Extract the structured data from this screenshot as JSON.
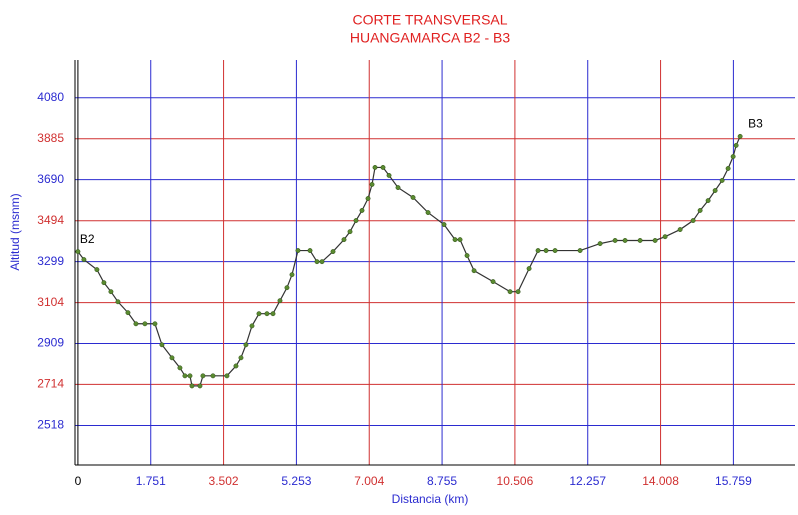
{
  "chart_data": {
    "type": "line",
    "title": "CORTE TRANSVERSAL",
    "subtitle": "HUANGAMARCA B2 - B3",
    "x_label": "Distancia (km)",
    "y_label": "Altitud (msnm)",
    "annotations": [
      "B2",
      "B3"
    ],
    "xlim": [
      -0.07,
      17.24
    ],
    "ylim": [
      2330,
      4260
    ],
    "xticks": [
      0,
      1.751,
      3.502,
      5.253,
      7.004,
      8.755,
      10.506,
      12.257,
      14.008,
      15.759
    ],
    "yticks": [
      2518,
      2714,
      2909,
      3104,
      3299,
      3494,
      3690,
      3885,
      4080
    ],
    "xtick_colors": [
      "#000000",
      "#2b2bd0",
      "#d03030",
      "#2b2bd0",
      "#d03030",
      "#2b2bd0",
      "#d03030",
      "#2b2bd0",
      "#d03030",
      "#2b2bd0"
    ],
    "ytick_colors": [
      "#2b2bd0",
      "#d03030",
      "#2b2bd0",
      "#d03030",
      "#2b2bd0",
      "#d03030",
      "#2b2bd0",
      "#d03030",
      "#2b2bd0"
    ],
    "grid": true,
    "series": [
      {
        "color": "#333333",
        "marker_color": "#5a8a30",
        "x": [
          0,
          0.144,
          0.457,
          0.625,
          0.794,
          0.962,
          1.203,
          1.395,
          1.611,
          1.852,
          2.02,
          2.261,
          2.453,
          2.573,
          2.694,
          2.742,
          2.934,
          3.006,
          3.247,
          3.583,
          3.8,
          3.92,
          4.04,
          4.185,
          4.353,
          4.545,
          4.69,
          4.858,
          5.026,
          5.147,
          5.291,
          5.58,
          5.748,
          5.868,
          6.133,
          6.397,
          6.542,
          6.686,
          6.83,
          6.975,
          7.071,
          7.143,
          7.335,
          7.48,
          7.696,
          8.057,
          8.418,
          8.802,
          9.067,
          9.187,
          9.356,
          9.524,
          9.981,
          10.39,
          10.582,
          10.847,
          11.063,
          11.255,
          11.472,
          12.073,
          12.554,
          12.915,
          13.155,
          13.516,
          13.877,
          14.117,
          14.478,
          14.791,
          14.959,
          15.151,
          15.32,
          15.488,
          15.632,
          15.753,
          15.825,
          15.921
        ],
        "values": [
          3347,
          3309,
          3261,
          3199,
          3156,
          3108,
          3056,
          3003,
          3003,
          3003,
          2903,
          2841,
          2793,
          2755,
          2755,
          2707,
          2707,
          2755,
          2755,
          2755,
          2802,
          2841,
          2903,
          2993,
          3051,
          3051,
          3051,
          3113,
          3175,
          3237,
          3352,
          3352,
          3299,
          3299,
          3347,
          3404,
          3442,
          3495,
          3543,
          3600,
          3667,
          3748,
          3748,
          3710,
          3652,
          3605,
          3533,
          3476,
          3404,
          3404,
          3328,
          3256,
          3204,
          3156,
          3156,
          3266,
          3352,
          3352,
          3352,
          3352,
          3385,
          3400,
          3400,
          3400,
          3400,
          3418,
          3452,
          3495,
          3543,
          3590,
          3638,
          3686,
          3743,
          3800,
          3853,
          3896
        ]
      }
    ]
  }
}
